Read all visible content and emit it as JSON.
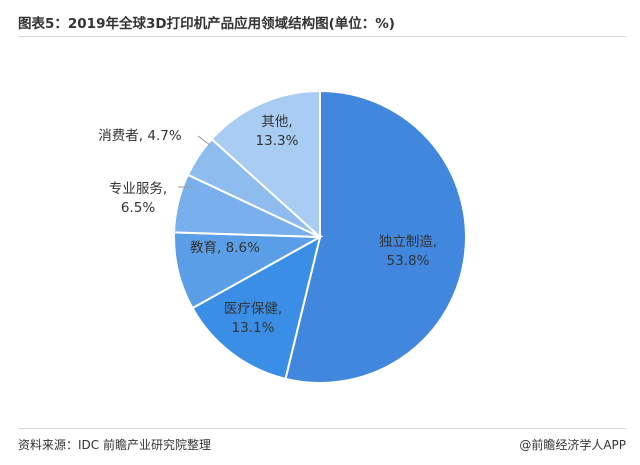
{
  "title": "图表5：2019年全球3D打印机产品应用领域结构图(单位：%)",
  "source": "资料来源：IDC 前瞻产业研究院整理",
  "brand": "@前瞻经济学人APP",
  "chart_data": {
    "type": "pie",
    "title": "图表5：2019年全球3D打印机产品应用领域结构图(单位：%)",
    "unit": "%",
    "slices": [
      {
        "name": "独立制造",
        "value": 53.8,
        "label": "53.8%",
        "color": "#4287de"
      },
      {
        "name": "医疗保健",
        "value": 13.1,
        "label": "13.1%",
        "color": "#3a8ee6"
      },
      {
        "name": "教育",
        "value": 8.6,
        "label": "8.6%",
        "color": "#5b9ee8"
      },
      {
        "name": "专业服务",
        "value": 6.5,
        "label": "6.5%",
        "color": "#78afec"
      },
      {
        "name": "消费者",
        "value": 4.7,
        "label": "4.7%",
        "color": "#8ebcef"
      },
      {
        "name": "其他",
        "value": 13.3,
        "label": "13.3%",
        "color": "#a9cdf2"
      }
    ]
  }
}
